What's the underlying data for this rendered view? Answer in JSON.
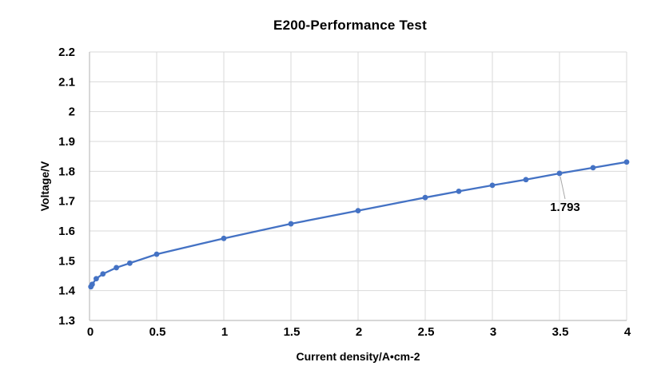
{
  "chart_data": {
    "type": "line",
    "title": "E200-Performance Test",
    "xlabel": "Current density/A•cm-2",
    "ylabel": "Voltage/V",
    "xlim": [
      0,
      4
    ],
    "ylim": [
      1.3,
      2.2
    ],
    "grid": true,
    "legend_position": "none",
    "x_tick_labels": [
      "0",
      "0.5",
      "1",
      "1.5",
      "2",
      "2.5",
      "3",
      "3.5",
      "4"
    ],
    "x_tick_values": [
      0,
      0.5,
      1,
      1.5,
      2,
      2.5,
      3,
      3.5,
      4
    ],
    "y_tick_labels": [
      "1.3",
      "1.4",
      "1.5",
      "1.6",
      "1.7",
      "1.8",
      "1.9",
      "2",
      "2.1",
      "2.2"
    ],
    "y_tick_values": [
      1.3,
      1.4,
      1.5,
      1.6,
      1.7,
      1.8,
      1.9,
      2.0,
      2.1,
      2.2
    ],
    "series": [
      {
        "color": "#4472C4",
        "marker": "circle",
        "x": [
          0.01,
          0.02,
          0.05,
          0.1,
          0.2,
          0.3,
          0.5,
          1,
          1.5,
          2,
          2.5,
          2.75,
          3,
          3.25,
          3.5,
          3.75,
          4
        ],
        "y": [
          1.413,
          1.421,
          1.44,
          1.456,
          1.477,
          1.492,
          1.522,
          1.575,
          1.624,
          1.668,
          1.712,
          1.733,
          1.753,
          1.772,
          1.793,
          1.812,
          1.831
        ]
      }
    ],
    "annotation": {
      "label": "1.793",
      "x": 3.5,
      "y": 1.793
    }
  },
  "colors": {
    "line": "#4472C4",
    "gridline": "#D9D9D9",
    "axis_line": "#BFBFBF",
    "leader_line": "#A6A6A6",
    "text": "#000000",
    "background": "#FFFFFF"
  }
}
